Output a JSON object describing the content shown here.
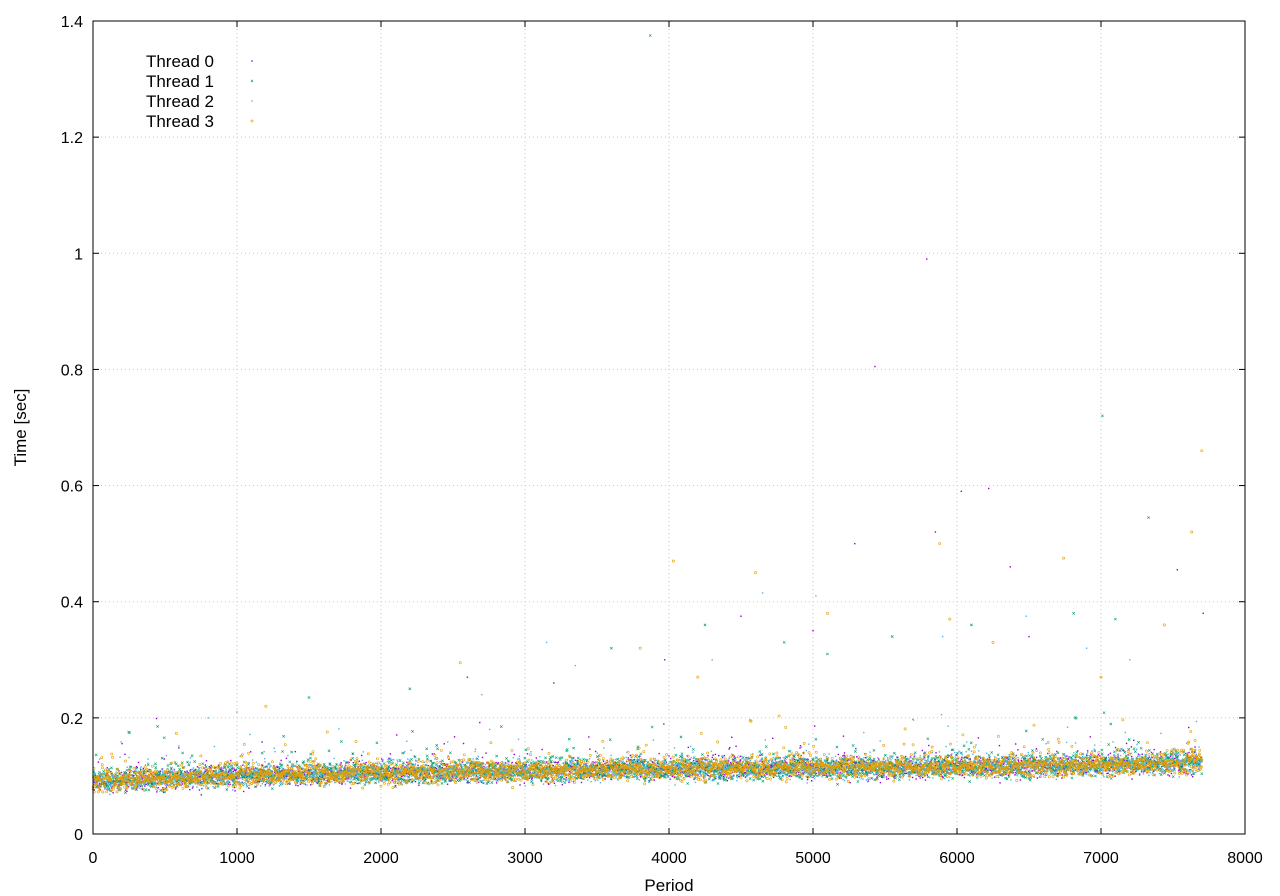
{
  "chart_data": {
    "type": "scatter",
    "title": "",
    "xlabel": "Period",
    "ylabel": "Time [sec]",
    "xlim": [
      0,
      8000
    ],
    "ylim": [
      0,
      1.4
    ],
    "x_ticks": [
      0,
      1000,
      2000,
      3000,
      4000,
      5000,
      6000,
      7000,
      8000
    ],
    "y_ticks": [
      0,
      0.2,
      0.4,
      0.6,
      0.8,
      1,
      1.2,
      1.4
    ],
    "x_tick_labels": [
      "0",
      "1000",
      "2000",
      "3000",
      "4000",
      "5000",
      "6000",
      "7000",
      "8000"
    ],
    "y_tick_labels": [
      "0",
      "0.2",
      "0.4",
      "0.6",
      "0.8",
      "1",
      "1.2",
      "1.4"
    ],
    "grid": true,
    "legend": {
      "position": "top-left"
    },
    "series": [
      {
        "name": "Thread 0",
        "color": "#9400d3",
        "marker": "dot",
        "trend": [
          [
            0,
            0.09
          ],
          [
            1000,
            0.1
          ],
          [
            2000,
            0.105
          ],
          [
            3000,
            0.108
          ],
          [
            4000,
            0.112
          ],
          [
            5000,
            0.113
          ],
          [
            6000,
            0.115
          ],
          [
            7000,
            0.118
          ],
          [
            7700,
            0.123
          ]
        ],
        "outliers": [
          [
            5790,
            0.99
          ],
          [
            6030,
            0.59
          ],
          [
            6220,
            0.595
          ],
          [
            5430,
            0.805
          ],
          [
            5290,
            0.5
          ],
          [
            5850,
            0.52
          ],
          [
            6370,
            0.46
          ],
          [
            7530,
            0.455
          ],
          [
            7710,
            0.38
          ],
          [
            4500,
            0.375
          ],
          [
            3970,
            0.3
          ],
          [
            3200,
            0.26
          ],
          [
            2600,
            0.27
          ],
          [
            5000,
            0.35
          ],
          [
            6500,
            0.34
          ]
        ]
      },
      {
        "name": "Thread 1",
        "color": "#009e73",
        "marker": "cross",
        "trend": [
          [
            0,
            0.09
          ],
          [
            1000,
            0.1
          ],
          [
            2000,
            0.105
          ],
          [
            3000,
            0.108
          ],
          [
            4000,
            0.112
          ],
          [
            5000,
            0.113
          ],
          [
            6000,
            0.115
          ],
          [
            7000,
            0.118
          ],
          [
            7700,
            0.123
          ]
        ],
        "outliers": [
          [
            3870,
            1.375
          ],
          [
            7010,
            0.72
          ],
          [
            7330,
            0.545
          ],
          [
            6810,
            0.38
          ],
          [
            7100,
            0.37
          ],
          [
            4250,
            0.36
          ],
          [
            5100,
            0.31
          ],
          [
            3600,
            0.32
          ],
          [
            2200,
            0.25
          ],
          [
            1500,
            0.235
          ],
          [
            4800,
            0.33
          ],
          [
            6100,
            0.36
          ],
          [
            5550,
            0.34
          ]
        ]
      },
      {
        "name": "Thread 2",
        "color": "#56b4e9",
        "marker": "dot",
        "trend": [
          [
            0,
            0.09
          ],
          [
            1000,
            0.1
          ],
          [
            2000,
            0.105
          ],
          [
            3000,
            0.108
          ],
          [
            4000,
            0.112
          ],
          [
            5000,
            0.113
          ],
          [
            6000,
            0.115
          ],
          [
            7000,
            0.118
          ],
          [
            7700,
            0.123
          ]
        ],
        "outliers": [
          [
            3150,
            0.33
          ],
          [
            4650,
            0.415
          ],
          [
            5020,
            0.41
          ],
          [
            6480,
            0.375
          ],
          [
            5900,
            0.34
          ],
          [
            6900,
            0.32
          ],
          [
            3350,
            0.29
          ],
          [
            1000,
            0.21
          ],
          [
            800,
            0.2
          ],
          [
            2700,
            0.24
          ],
          [
            7200,
            0.3
          ],
          [
            4300,
            0.3
          ]
        ]
      },
      {
        "name": "Thread 3",
        "color": "#e69f00",
        "marker": "circle",
        "trend": [
          [
            0,
            0.09
          ],
          [
            1000,
            0.1
          ],
          [
            2000,
            0.105
          ],
          [
            3000,
            0.108
          ],
          [
            4000,
            0.112
          ],
          [
            5000,
            0.113
          ],
          [
            6000,
            0.115
          ],
          [
            7000,
            0.118
          ],
          [
            7700,
            0.123
          ]
        ],
        "outliers": [
          [
            7700,
            0.66
          ],
          [
            7630,
            0.52
          ],
          [
            4030,
            0.47
          ],
          [
            6740,
            0.475
          ],
          [
            5880,
            0.5
          ],
          [
            4600,
            0.45
          ],
          [
            5950,
            0.37
          ],
          [
            7440,
            0.36
          ],
          [
            5100,
            0.38
          ],
          [
            2550,
            0.295
          ],
          [
            3800,
            0.32
          ],
          [
            6250,
            0.33
          ],
          [
            4200,
            0.27
          ],
          [
            7000,
            0.27
          ],
          [
            1200,
            0.22
          ]
        ]
      }
    ]
  }
}
